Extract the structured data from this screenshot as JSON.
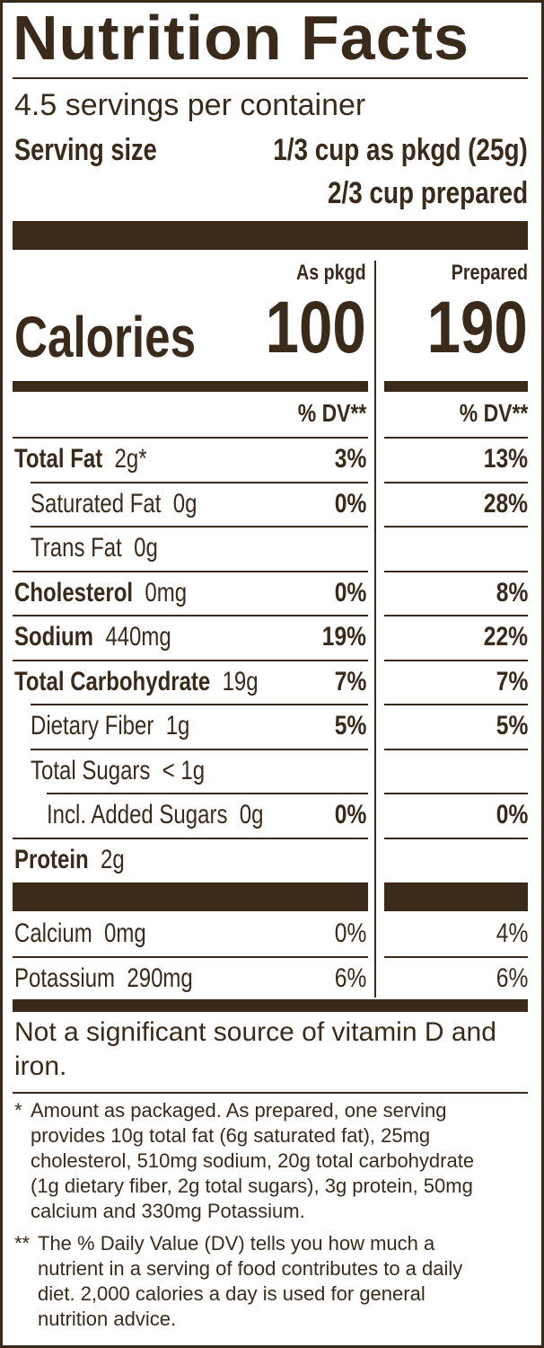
{
  "title": "Nutrition Facts",
  "servings_per_container": "4.5 servings per container",
  "serving_size_label": "Serving size",
  "serving_size_pkgd": "1/3 cup as pkgd (25g)",
  "serving_size_prepared": "2/3 cup prepared",
  "columns": {
    "as_pkgd": "As pkgd",
    "prepared": "Prepared"
  },
  "calories": {
    "label": "Calories",
    "as_pkgd": "100",
    "prepared": "190"
  },
  "dv_header": "% DV**",
  "nutrients": [
    {
      "name": "Total Fat",
      "amount": "2g*",
      "pkgd": "3%",
      "prep": "13%"
    },
    {
      "name": "Saturated Fat",
      "amount": "0g",
      "pkgd": "0%",
      "prep": "28%"
    },
    {
      "name": "Trans Fat",
      "amount": "0g",
      "pkgd": "",
      "prep": ""
    },
    {
      "name": "Cholesterol",
      "amount": "0mg",
      "pkgd": "0%",
      "prep": "8%"
    },
    {
      "name": "Sodium",
      "amount": "440mg",
      "pkgd": "19%",
      "prep": "22%"
    },
    {
      "name": "Total Carbohydrate",
      "amount": "19g",
      "pkgd": "7%",
      "prep": "7%"
    },
    {
      "name": "Dietary Fiber",
      "amount": "1g",
      "pkgd": "5%",
      "prep": "5%"
    },
    {
      "name": "Total Sugars",
      "amount": "< 1g",
      "pkgd": "",
      "prep": ""
    },
    {
      "name": "Incl. Added Sugars",
      "amount": "0g",
      "pkgd": "0%",
      "prep": "0%"
    },
    {
      "name": "Protein",
      "amount": "2g",
      "pkgd": "",
      "prep": ""
    }
  ],
  "minerals": [
    {
      "name": "Calcium",
      "amount": "0mg",
      "pkgd": "0%",
      "prep": "4%"
    },
    {
      "name": "Potassium",
      "amount": "290mg",
      "pkgd": "6%",
      "prep": "6%"
    }
  ],
  "not_significant_line1": "Not a significant source of vitamin D and",
  "not_significant_line2": "iron.",
  "footnote1_marker": "*",
  "footnote1_lines": [
    "Amount as packaged. As prepared, one serving",
    "provides 10g total fat (6g saturated fat), 25mg",
    "cholesterol, 510mg sodium, 20g total carbohydrate",
    "(1g dietary fiber, 2g total sugars), 3g protein, 50mg",
    "calcium and 330mg Potassium."
  ],
  "footnote2_marker": "**",
  "footnote2_lines": [
    "The % Daily Value (DV) tells you how much a",
    "nutrient in a serving of food contributes to a daily",
    "diet. 2,000 calories a day is used for general",
    "nutrition advice."
  ],
  "colors": {
    "ink": "#3a2a1a",
    "background": "#ffffff"
  }
}
